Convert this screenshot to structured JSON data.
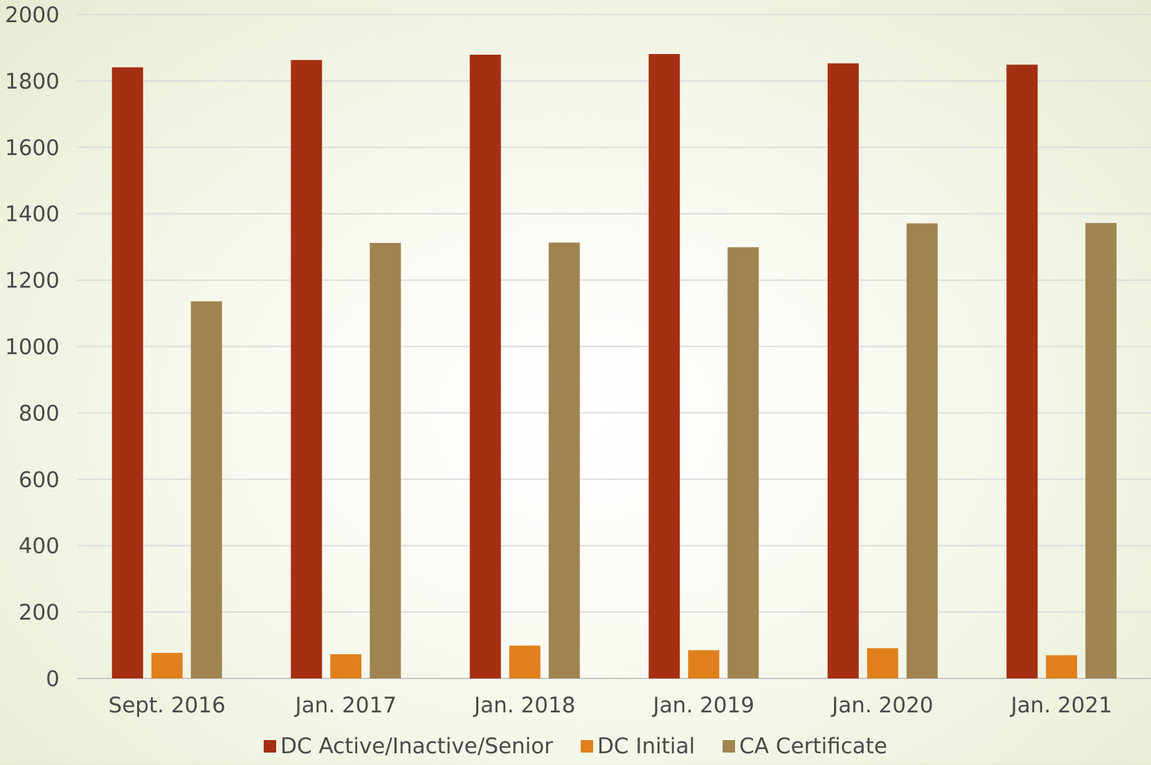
{
  "chart_data": {
    "type": "bar",
    "categories": [
      "Sept. 2016",
      "Jan. 2017",
      "Jan. 2018",
      "Jan. 2019",
      "Jan. 2020",
      "Jan. 2021"
    ],
    "series": [
      {
        "name": "DC Active/Inactive/Senior",
        "color": "#a52f12",
        "values": [
          1841,
          1863,
          1879,
          1881,
          1853,
          1849
        ]
      },
      {
        "name": "DC Initial",
        "color": "#e07f1c",
        "values": [
          77,
          73,
          99,
          85,
          91,
          70
        ]
      },
      {
        "name": "CA Certificate",
        "color": "#a08450",
        "values": [
          1136,
          1312,
          1313,
          1299,
          1371,
          1372
        ]
      }
    ],
    "yticks": [
      "0",
      "200",
      "400",
      "600",
      "800",
      "1000",
      "1200",
      "1400",
      "1600",
      "1800",
      "2000"
    ],
    "ylim": [
      0,
      2000
    ],
    "grid": true,
    "legend_position": "bottom",
    "title": "",
    "xlabel": "",
    "ylabel": ""
  }
}
